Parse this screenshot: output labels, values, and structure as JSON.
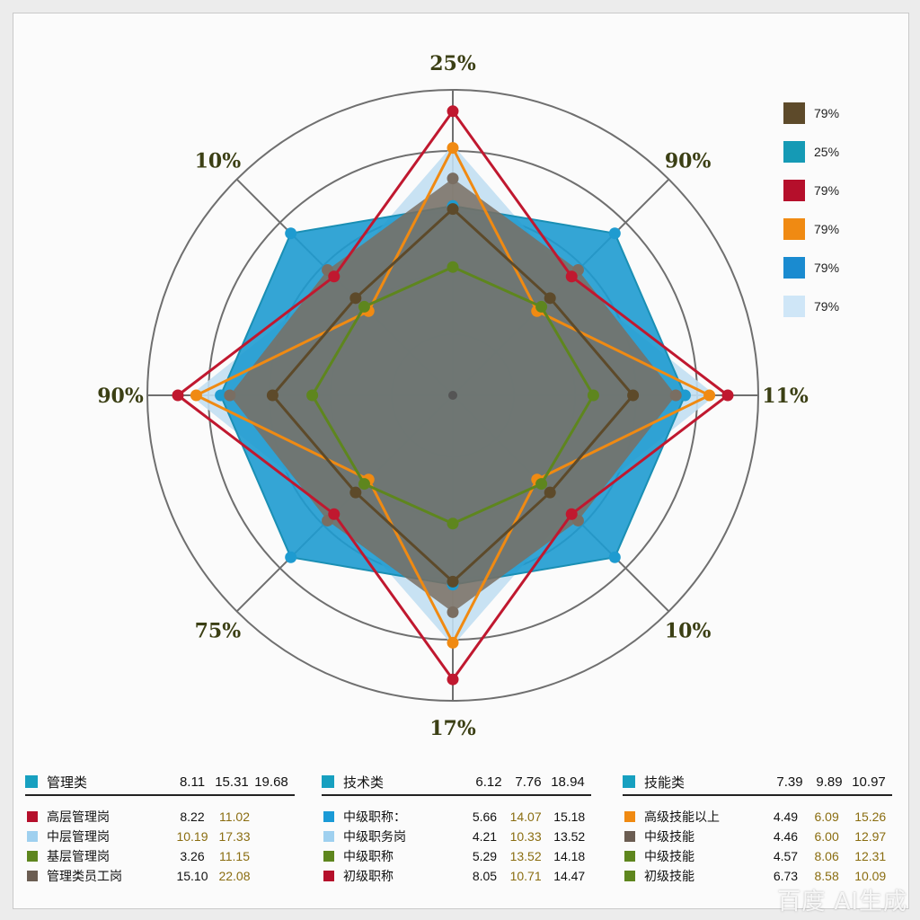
{
  "chart_data": {
    "type": "radar",
    "axis_labels": [
      "25%",
      "90%",
      "11%",
      "10%",
      "17%",
      "75%",
      "90%",
      "10%"
    ],
    "max": 100,
    "series": [
      {
        "color": "#c2dff2",
        "fill": true,
        "values": [
          82,
          54,
          86,
          54,
          82,
          54,
          86,
          54
        ]
      },
      {
        "color": "#1e9bd0",
        "fill": true,
        "values": [
          62,
          75,
          76,
          75,
          62,
          75,
          76,
          75
        ]
      },
      {
        "color": "#7a6e62",
        "fill": true,
        "values": [
          71,
          58,
          73,
          58,
          71,
          58,
          73,
          58
        ]
      },
      {
        "color": "#c0182f",
        "fill": false,
        "values": [
          93,
          55,
          90,
          55,
          93,
          55,
          90,
          55
        ]
      },
      {
        "color": "#f08a12",
        "fill": false,
        "values": [
          81,
          39,
          84,
          39,
          81,
          39,
          84,
          39
        ]
      },
      {
        "color": "#5e861e",
        "fill": false,
        "values": [
          42,
          41,
          46,
          41,
          42,
          41,
          46,
          41
        ]
      },
      {
        "color": "#5d4a2a",
        "fill": false,
        "values": [
          61,
          45,
          59,
          45,
          61,
          45,
          59,
          45
        ]
      }
    ]
  },
  "legend": [
    {
      "color": "#5d4a2a",
      "label": "79%"
    },
    {
      "color": "#159ab5",
      "label": "25%"
    },
    {
      "color": "#b50f2b",
      "label": "79%"
    },
    {
      "color": "#f08a12",
      "label": "79%"
    },
    {
      "color": "#1a8bd0",
      "label": "79%"
    },
    {
      "color": "#cfe6f7",
      "label": "79%"
    }
  ],
  "tables": [
    {
      "name": "管理类",
      "values": [
        "8.11",
        "15.31",
        "19.68"
      ],
      "rows": [
        {
          "color": "#b50f2b",
          "name": "高层管理岗",
          "values": [
            "8.22",
            "11.02",
            ""
          ]
        },
        {
          "color": "#9fd0ef",
          "name": "中层管理岗",
          "values": [
            "10.19",
            "17.33",
            ""
          ]
        },
        {
          "color": "#5e861e",
          "name": "基层管理岗",
          "values": [
            "3.26",
            "11.15",
            ""
          ]
        },
        {
          "color": "#6b5d52",
          "name": "管理类员工岗",
          "values": [
            "15.10",
            "22.08",
            ""
          ]
        }
      ]
    },
    {
      "name": "技术类",
      "values": [
        "6.12",
        "7.76",
        "18.94"
      ],
      "rows": [
        {
          "color": "#1a9ad6",
          "name": "中级职称：",
          "values": [
            "5.66",
            "14.07",
            "15.18"
          ]
        },
        {
          "color": "#9fd0ef",
          "name": "中级职务岗",
          "values": [
            "4.21",
            "10.33",
            "13.52"
          ]
        },
        {
          "color": "#5e861e",
          "name": "中级职称",
          "values": [
            "5.29",
            "13.52",
            "14.18"
          ]
        },
        {
          "color": "#b50f2b",
          "name": "初级职称",
          "values": [
            "8.05",
            "10.71",
            "14.47"
          ]
        }
      ]
    },
    {
      "name": "技能类",
      "values": [
        "7.39",
        "9.89",
        "10.97"
      ],
      "rows": [
        {
          "color": "#f08a12",
          "name": "高级技能以上",
          "values": [
            "4.49",
            "6.09",
            "15.26"
          ]
        },
        {
          "color": "#6b5d52",
          "name": "中级技能",
          "values": [
            "4.46",
            "6.00",
            "12.97"
          ]
        },
        {
          "color": "#5e861e",
          "name": "中级技能",
          "values": [
            "4.57",
            "8.06",
            "12.31"
          ]
        },
        {
          "color": "#5e861e",
          "name": "初级技能",
          "values": [
            "6.73",
            "8.58",
            "10.09"
          ]
        }
      ]
    }
  ],
  "watermark": "百度 AI生成"
}
